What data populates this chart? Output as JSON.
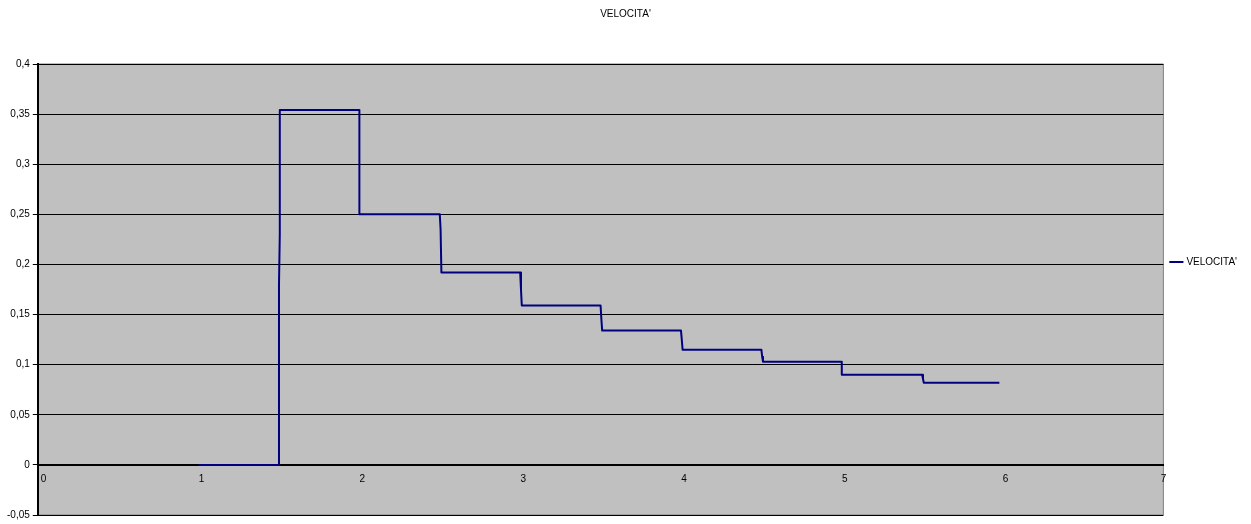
{
  "chart_data": {
    "type": "line",
    "title": "VELOCITA'",
    "series": [
      {
        "name": "VELOCITA'",
        "color": "#000080",
        "x": [
          1,
          1.5,
          1.5,
          1.505,
          1.505,
          2,
          2,
          2.5,
          2.505,
          2.51,
          3,
          3.005,
          3.01,
          3.5,
          3.505,
          3.51,
          4,
          4.005,
          4.01,
          4.5,
          4.505,
          4.51,
          5,
          5,
          5.5,
          5.505,
          5.51,
          5.98
        ],
        "values": [
          0,
          0,
          0.18,
          0.23,
          0.354,
          0.354,
          0.25,
          0.25,
          0.235,
          0.192,
          0.192,
          0.175,
          0.159,
          0.159,
          0.145,
          0.134,
          0.134,
          0.125,
          0.115,
          0.115,
          0.108,
          0.103,
          0.103,
          0.09,
          0.09,
          0.086,
          0.082,
          0.082
        ]
      }
    ],
    "xlim": [
      0,
      7
    ],
    "xticks": [
      0,
      1,
      2,
      3,
      4,
      5,
      6,
      7
    ],
    "ylim": [
      -0.05,
      0.4
    ],
    "yticks": [
      {
        "value": -0.05,
        "label": "-0,05"
      },
      {
        "value": 0,
        "label": "0"
      },
      {
        "value": 0.05,
        "label": "0,05"
      },
      {
        "value": 0.1,
        "label": "0,1"
      },
      {
        "value": 0.15,
        "label": "0,15"
      },
      {
        "value": 0.2,
        "label": "0,2"
      },
      {
        "value": 0.25,
        "label": "0,25"
      },
      {
        "value": 0.3,
        "label": "0,3"
      },
      {
        "value": 0.35,
        "label": "0,35"
      },
      {
        "value": 0.4,
        "label": "0,4"
      }
    ],
    "grid": "y",
    "legend": "right",
    "marker": "none",
    "line_style": "solid"
  }
}
